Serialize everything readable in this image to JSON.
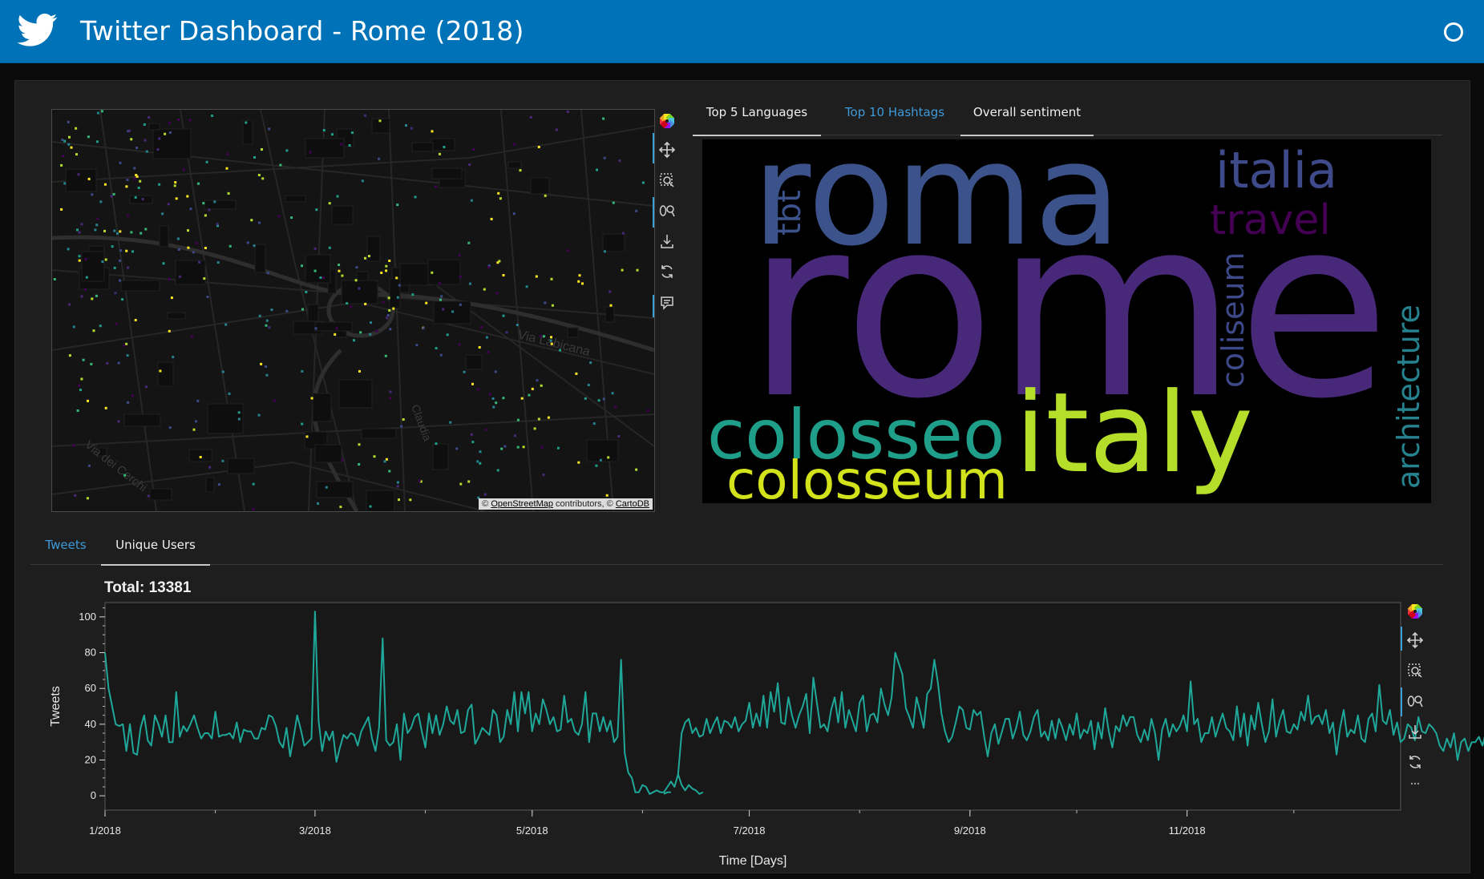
{
  "header": {
    "title": "Twitter Dashboard - Rome (2018)",
    "logo_icon": "twitter-bird-icon",
    "status_icon": "circle-icon",
    "background": "#0072b8"
  },
  "map": {
    "attribution_osm": "OpenStreetMap",
    "attribution_mid": " contributors, © ",
    "attribution_carto": "CartoDB",
    "attribution_prefix": "© ",
    "street_labels": [
      "Via Labicana",
      "Via dei Cerchi",
      "Claudia"
    ],
    "toolbar": [
      "bokeh-logo-icon",
      "pan-icon",
      "box-zoom-icon",
      "wheel-zoom-icon",
      "save-icon",
      "reset-icon",
      "hover-icon"
    ],
    "point_colors": [
      "#fde725",
      "#b5de2b",
      "#35b779",
      "#1f9e89",
      "#26828e",
      "#3e4989",
      "#482878",
      "#440154"
    ]
  },
  "top_tabs": [
    {
      "label": "Top 5 Languages"
    },
    {
      "label": "Top 10 Hashtags"
    },
    {
      "label": "Overall sentiment"
    }
  ],
  "wordcloud": {
    "words": [
      {
        "text": "rome",
        "color": "#482878"
      },
      {
        "text": "roma",
        "color": "#3b528b"
      },
      {
        "text": "italy",
        "color": "#b5de2b"
      },
      {
        "text": "colosseo",
        "color": "#1f9e89"
      },
      {
        "text": "colosseum",
        "color": "#d2e21b"
      },
      {
        "text": "italia",
        "color": "#3e4a89"
      },
      {
        "text": "travel",
        "color": "#440154"
      },
      {
        "text": "tbt",
        "color": "#3b528b"
      },
      {
        "text": "coliseum",
        "color": "#3e4989"
      },
      {
        "text": "architecture",
        "color": "#26828e"
      }
    ]
  },
  "bottom_tabs": [
    {
      "label": "Tweets"
    },
    {
      "label": "Unique Users"
    }
  ],
  "chart_toolbar": [
    "bokeh-logo-icon",
    "pan-icon",
    "box-zoom-icon",
    "wheel-zoom-icon",
    "save-icon",
    "reset-icon",
    "more-icon"
  ],
  "chart_data": {
    "type": "line",
    "title": "Total: 13381",
    "xlabel": "Time [Days]",
    "ylabel": "Tweets",
    "line_color": "#1fa89a",
    "ylim": [
      -8,
      108
    ],
    "xlim": [
      "2018-01-01",
      "2018-12-31"
    ],
    "yticks": [
      0,
      20,
      40,
      60,
      80,
      100
    ],
    "xticks": [
      "1/2018",
      "3/2018",
      "5/2018",
      "7/2018",
      "9/2018",
      "11/2018"
    ],
    "series": [
      {
        "segments": [
          {
            "start": "2018-01-01",
            "values": [
              80,
              60,
              50,
              40,
              39,
              40,
              25,
              40,
              24,
              23,
              38,
              45,
              31,
              28,
              45,
              40,
              33,
              45,
              30,
              30,
              58,
              33,
              39,
              36,
              40,
              45,
              38,
              32,
              35,
              35,
              32,
              47,
              33,
              34,
              34,
              35,
              32,
              41,
              30,
              37,
              36,
              36,
              32,
              32,
              38,
              37,
              45,
              44,
              39,
              30,
              27,
              38,
              22,
              33,
              45,
              37,
              28,
              30,
              32,
              103,
              42,
              25,
              36,
              31,
              36,
              19,
              27,
              34,
              32,
              35,
              34,
              28,
              36,
              40,
              44,
              32,
              25,
              38,
              88,
              31,
              28,
              30,
              40,
              20,
              46,
              35,
              38,
              44,
              46,
              36,
              27,
              46,
              35,
              45,
              34,
              40,
              50,
              42,
              40,
              48,
              35,
              36,
              48,
              51,
              29,
              33,
              38,
              36,
              34,
              48,
              45,
              30,
              33,
              48,
              40,
              58,
              36,
              58,
              46,
              58,
              36,
              46,
              40,
              54,
              48,
              40,
              44,
              36,
              37,
              56,
              41,
              43,
              36,
              34,
              40,
              58,
              30,
              46,
              46,
              36,
              44,
              36,
              42,
              30,
              33,
              76,
              24,
              13,
              10,
              2,
              2,
              6,
              5,
              1,
              2,
              3,
              2,
              2,
              5,
              8,
              5,
              12,
              6,
              3,
              6,
              4,
              3,
              1,
              2
            ]
          },
          {
            "start": "2018-06-07",
            "values": [
              1,
              2,
              2
            ]
          },
          {
            "start": "2018-06-11",
            "values": [
              12,
              35,
              41,
              43,
              35,
              38,
              33,
              34,
              43,
              35,
              40,
              44,
              35,
              42,
              41,
              38,
              44,
              36,
              40,
              42,
              52,
              38,
              46,
              39,
              56,
              38,
              58,
              47,
              63,
              41,
              40,
              55,
              45,
              38,
              45,
              50,
              57,
              35,
              66,
              52,
              38,
              40,
              36,
              48,
              55,
              41,
              58,
              38,
              48,
              42,
              36,
              52,
              56,
              36,
              45,
              46,
              41,
              60,
              51,
              45,
              55,
              80,
              74,
              68,
              49,
              44,
              38,
              55,
              47,
              38,
              57,
              60,
              76,
              63,
              46,
              36,
              30,
              33,
              41,
              50,
              48,
              38,
              37,
              48,
              45,
              47,
              33,
              22,
              35,
              40,
              29,
              36,
              43,
              43,
              32,
              38,
              47,
              34,
              31,
              36,
              44,
              48,
              33,
              36,
              31,
              42,
              32,
              43,
              38,
              31,
              40,
              34,
              46,
              32,
              37,
              35,
              42,
              26,
              41,
              32,
              49,
              36,
              27,
              39,
              36,
              45,
              39,
              44,
              44,
              34,
              30,
              37,
              31,
              43,
              35,
              20,
              37,
              43,
              33,
              40,
              36,
              39,
              45,
              36,
              64,
              40,
              43,
              30,
              35,
              35,
              44,
              33,
              40,
              46,
              38,
              36,
              31,
              50,
              33,
              46,
              28,
              45,
              37,
              52,
              40,
              30,
              36,
              54,
              33,
              42,
              48,
              36,
              35,
              40,
              37,
              47,
              42,
              56,
              40,
              44,
              45,
              40,
              48,
              35,
              41,
              23,
              38,
              48,
              33,
              37,
              35,
              45,
              32,
              30,
              43,
              46,
              36,
              62,
              42,
              40,
              48,
              34,
              41,
              30,
              32,
              40,
              38,
              31,
              44,
              36,
              35,
              40,
              38,
              35,
              28,
              25,
              32,
              27,
              35,
              20,
              30,
              32,
              25,
              30,
              30,
              33,
              28,
              36,
              30,
              31,
              38,
              32,
              34,
              45,
              30,
              39,
              36,
              40,
              27,
              41,
              40,
              45,
              34,
              28,
              37,
              45,
              35,
              42,
              22,
              36,
              46,
              32,
              40,
              35,
              34,
              42,
              36,
              50,
              34,
              38,
              30,
              45,
              32,
              40,
              32,
              55,
              35,
              38,
              40,
              25,
              38,
              30,
              40,
              28,
              40,
              36,
              44,
              30,
              34,
              28,
              20,
              30,
              33,
              37,
              29,
              26,
              32,
              25,
              28,
              26,
              31,
              24,
              31,
              27,
              19,
              32,
              34,
              30,
              25,
              40,
              59,
              44,
              50,
              60,
              48
            ]
          }
        ]
      }
    ]
  }
}
